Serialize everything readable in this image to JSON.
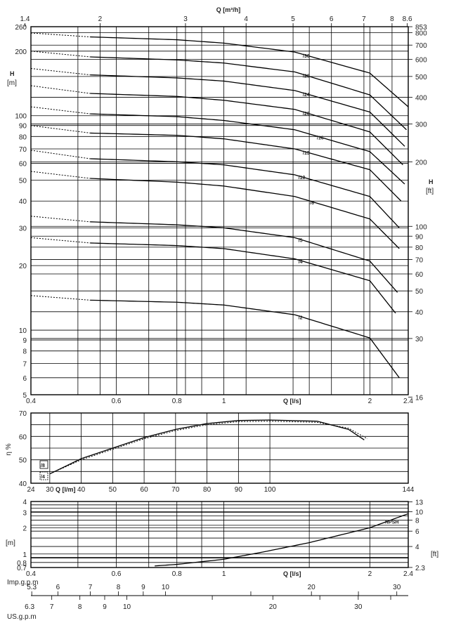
{
  "chart_data": [
    {
      "id": "head",
      "type": "line",
      "top_axis": {
        "label": "Q [m³/h]",
        "ticks": [
          "1.4",
          "2",
          "3",
          "4",
          "5",
          "6",
          "7",
          "8",
          "8.6"
        ]
      },
      "bottom_axis": {
        "label": "Q [l/s]",
        "ticks": [
          "0.4",
          "0.6",
          "0.8",
          "1",
          "2",
          "2.4"
        ]
      },
      "left_axis": {
        "label": "H",
        "unit": "[m]",
        "scale": "log",
        "ticks": [
          "5",
          "6",
          "7",
          "8",
          "9",
          "10",
          "20",
          "30",
          "40",
          "50",
          "60",
          "70",
          "80",
          "90",
          "100",
          "200",
          "260"
        ]
      },
      "right_axis": {
        "label": "H",
        "unit": "[ft]",
        "scale": "log",
        "ticks": [
          "16",
          "30",
          "40",
          "50",
          "60",
          "70",
          "80",
          "90",
          "100",
          "200",
          "300",
          "400",
          "500",
          "600",
          "700",
          "800",
          "853"
        ]
      },
      "xlim": [
        0.4,
        2.4
      ],
      "ylim": [
        5,
        260
      ],
      "series": [
        {
          "name": "/36",
          "q": [
            0.4,
            0.53,
            0.8,
            1.0,
            1.4,
            2.0,
            2.4
          ],
          "h": [
            243,
            233,
            226,
            218,
            198,
            158,
            110
          ],
          "label_q": 1.45
        },
        {
          "name": "/29",
          "q": [
            0.4,
            0.53,
            0.8,
            1.0,
            1.4,
            2.0,
            2.38
          ],
          "h": [
            200,
            188,
            182,
            176,
            160,
            125,
            86
          ],
          "label_q": 1.45
        },
        {
          "name": "/24",
          "q": [
            0.4,
            0.53,
            0.8,
            1.0,
            1.4,
            2.0,
            2.36
          ],
          "h": [
            166,
            155,
            150,
            145,
            131,
            104,
            72
          ],
          "label_q": 1.45
        },
        {
          "name": "/20",
          "q": [
            0.4,
            0.53,
            0.8,
            1.0,
            1.4,
            2.0,
            2.34
          ],
          "h": [
            138,
            127,
            123,
            118,
            107,
            84,
            59
          ],
          "label_q": 1.45
        },
        {
          "name": "/16",
          "q": [
            0.4,
            0.53,
            0.8,
            1.0,
            1.4,
            2.0,
            2.36
          ],
          "h": [
            110,
            102,
            99,
            95,
            86,
            68,
            48
          ],
          "label_q": 1.55
        },
        {
          "name": "/13",
          "q": [
            0.4,
            0.53,
            0.8,
            1.0,
            1.4,
            2.0,
            2.32
          ],
          "h": [
            90,
            83,
            81,
            78,
            70,
            56,
            40
          ],
          "label_q": 1.45
        },
        {
          "name": "/10",
          "q": [
            0.4,
            0.53,
            0.8,
            1.0,
            1.4,
            2.0,
            2.3
          ],
          "h": [
            69,
            63,
            61,
            59,
            53,
            42,
            30
          ],
          "label_q": 1.42
        },
        {
          "name": "/8",
          "q": [
            0.4,
            0.53,
            0.8,
            1.0,
            1.4,
            2.0,
            2.3
          ],
          "h": [
            55,
            51,
            49,
            47,
            42,
            33,
            24
          ],
          "label_q": 1.5
        },
        {
          "name": "/5",
          "q": [
            0.4,
            0.53,
            0.8,
            1.0,
            1.4,
            2.0,
            2.28
          ],
          "h": [
            34,
            32,
            31,
            30,
            27,
            21,
            15
          ],
          "label_q": 1.42
        },
        {
          "name": "/4",
          "q": [
            0.4,
            0.53,
            0.8,
            1.0,
            1.4,
            2.0,
            2.26
          ],
          "h": [
            27,
            25.5,
            24.8,
            24,
            21.5,
            17,
            12
          ],
          "label_q": 1.42
        },
        {
          "name": "/2",
          "q": [
            0.4,
            0.53,
            0.8,
            1.0,
            1.4,
            2.0,
            2.3
          ],
          "h": [
            14.5,
            13.8,
            13.5,
            13.1,
            11.8,
            9.2,
            6.0
          ],
          "label_q": 1.42
        }
      ]
    },
    {
      "id": "efficiency",
      "type": "line",
      "bottom_axis": {
        "label": "Q [l/m]",
        "ticks": [
          "24",
          "30",
          "40",
          "50",
          "60",
          "70",
          "80",
          "90",
          "100",
          "144"
        ]
      },
      "left_axis": {
        "label": "η %",
        "ticks": [
          "40",
          "50",
          "60",
          "70"
        ]
      },
      "xlim": [
        24,
        144
      ],
      "ylim": [
        40,
        70
      ],
      "series": [
        {
          "name": "/8",
          "style": "solid",
          "x": [
            30,
            40,
            50,
            60,
            70,
            80,
            90,
            100,
            115,
            125,
            130
          ],
          "y": [
            44,
            50.5,
            55,
            59.5,
            63,
            65.5,
            66.8,
            67,
            66.5,
            63,
            58.5
          ]
        },
        {
          "name": "/4",
          "style": "dotted",
          "x": [
            30,
            40,
            50,
            60,
            70,
            80,
            90,
            100,
            115,
            125,
            131
          ],
          "y": [
            44,
            50,
            54.5,
            59,
            62.5,
            65,
            66.3,
            66.5,
            66,
            63.5,
            59
          ]
        }
      ]
    },
    {
      "id": "npsh",
      "type": "line",
      "bottom_axis": {
        "label": "Q [l/s]",
        "ticks": [
          "0.4",
          "0.6",
          "0.8",
          "1",
          "2",
          "2.4"
        ]
      },
      "left_axis": {
        "unit": "[m]",
        "scale": "log",
        "ticks": [
          "0.7",
          "0.8",
          "1",
          "2",
          "3",
          "4"
        ]
      },
      "right_axis": {
        "unit": "[ft]",
        "scale": "log",
        "ticks": [
          "2.3",
          "4",
          "6",
          "8",
          "10",
          "13"
        ]
      },
      "xlim": [
        0.4,
        2.4
      ],
      "ylim": [
        0.7,
        4
      ],
      "series": [
        {
          "name": "NPSH",
          "q": [
            0.72,
            0.8,
            1.0,
            1.2,
            1.5,
            2.0,
            2.4
          ],
          "h": [
            0.73,
            0.76,
            0.87,
            1.05,
            1.35,
            2.0,
            2.9
          ],
          "label_q": 2.15
        }
      ]
    }
  ],
  "imp_gpm": {
    "label": "Imp.g.p.m",
    "ticks": [
      "5.3",
      "6",
      "7",
      "8",
      "9",
      "10",
      "20",
      "30"
    ]
  },
  "us_gpm": {
    "label": "US.g.p.m",
    "ticks": [
      "6.3",
      "7",
      "8",
      "9",
      "10",
      "20",
      "30"
    ]
  }
}
